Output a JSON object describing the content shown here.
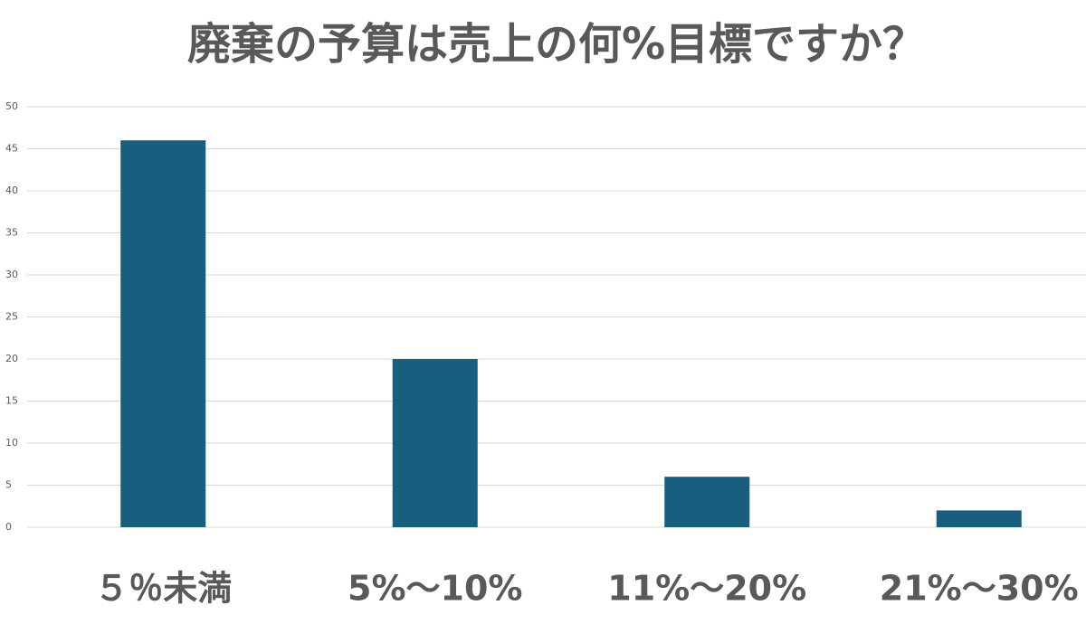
{
  "chart_data": {
    "type": "bar",
    "title": "廃棄の予算は売上の何%目標ですか？",
    "categories": [
      "５％未満",
      "5%～10%",
      "11%～20%",
      "21%～30%"
    ],
    "values": [
      46,
      20,
      6,
      2
    ],
    "color": "#175e7f",
    "ylim": [
      0,
      50
    ],
    "yticks": [
      0,
      5,
      10,
      15,
      20,
      25,
      30,
      35,
      40,
      45,
      50
    ],
    "grid": true
  }
}
